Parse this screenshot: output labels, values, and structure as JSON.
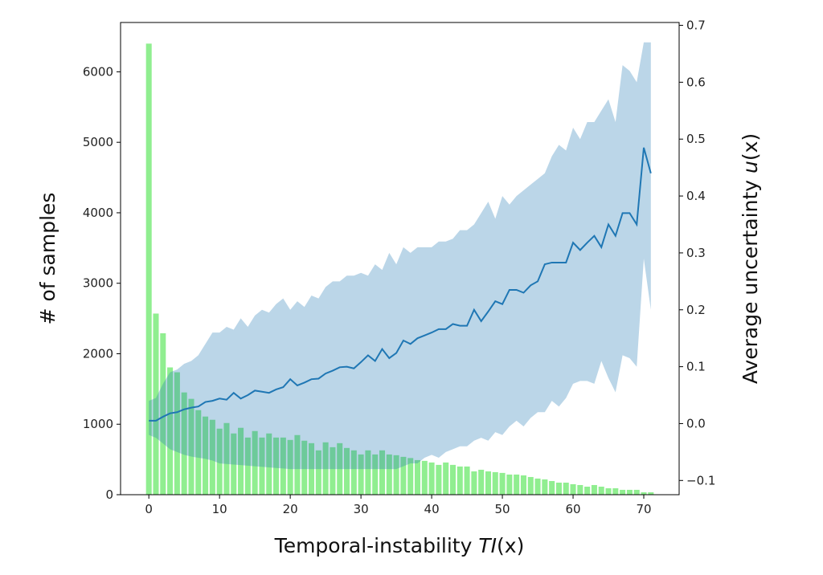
{
  "chart_data": {
    "type": "bar+line",
    "xlabel": "Temporal-instability TI(x)",
    "xlabel_parts": {
      "pre": "Temporal-instability ",
      "var": "TI",
      "post": "(x)"
    },
    "ylabel": "# of samples",
    "y2label": "Average uncertainty u(x)",
    "y2label_parts": {
      "pre": "Average uncertainty ",
      "var": "u",
      "post": "(x)"
    },
    "xlim": [
      -4,
      75
    ],
    "ylim": [
      0,
      6700
    ],
    "y2lim": [
      -0.125,
      0.705
    ],
    "xticks": [
      0,
      10,
      20,
      30,
      40,
      50,
      60,
      70
    ],
    "yticks": [
      0,
      1000,
      2000,
      3000,
      4000,
      5000,
      6000
    ],
    "y2ticks": [
      -0.1,
      0.0,
      0.1,
      0.2,
      0.3,
      0.4,
      0.5,
      0.6,
      0.7
    ],
    "y2ticklabels": [
      "−0.1",
      "0.0",
      "0.1",
      "0.2",
      "0.3",
      "0.4",
      "0.5",
      "0.6",
      "0.7"
    ],
    "colors": {
      "bars": "#90ee90",
      "line": "#1f77b4",
      "band": "#1f77b4"
    },
    "bars": [
      6400,
      2570,
      2290,
      1806,
      1737,
      1451,
      1360,
      1200,
      1109,
      1063,
      937,
      1017,
      869,
      949,
      811,
      903,
      811,
      869,
      811,
      811,
      777,
      846,
      766,
      731,
      629,
      743,
      674,
      731,
      663,
      629,
      571,
      629,
      571,
      629,
      571,
      560,
      537,
      520,
      491,
      480,
      457,
      423,
      457,
      423,
      400,
      400,
      331,
      354,
      331,
      320,
      309,
      286,
      286,
      274,
      251,
      229,
      217,
      194,
      171,
      171,
      149,
      137,
      114,
      137,
      114,
      91,
      91,
      69,
      69,
      69,
      34,
      34
    ],
    "mean": [
      0.005,
      0.005,
      0.012,
      0.018,
      0.02,
      0.025,
      0.028,
      0.03,
      0.038,
      0.04,
      0.044,
      0.042,
      0.054,
      0.044,
      0.05,
      0.058,
      0.056,
      0.054,
      0.06,
      0.064,
      0.078,
      0.067,
      0.072,
      0.078,
      0.079,
      0.088,
      0.093,
      0.099,
      0.1,
      0.097,
      0.108,
      0.12,
      0.11,
      0.131,
      0.115,
      0.124,
      0.146,
      0.14,
      0.15,
      0.155,
      0.16,
      0.166,
      0.166,
      0.175,
      0.172,
      0.172,
      0.2,
      0.18,
      0.197,
      0.215,
      0.21,
      0.235,
      0.235,
      0.23,
      0.243,
      0.25,
      0.28,
      0.283,
      0.283,
      0.283,
      0.318,
      0.305,
      0.318,
      0.33,
      0.31,
      0.35,
      0.33,
      0.37,
      0.37,
      0.35,
      0.485,
      0.44
    ],
    "lower": [
      -0.02,
      -0.025,
      -0.035,
      -0.045,
      -0.05,
      -0.055,
      -0.058,
      -0.06,
      -0.062,
      -0.065,
      -0.07,
      -0.071,
      -0.072,
      -0.073,
      -0.074,
      -0.075,
      -0.076,
      -0.077,
      -0.078,
      -0.079,
      -0.08,
      -0.08,
      -0.08,
      -0.08,
      -0.08,
      -0.08,
      -0.08,
      -0.08,
      -0.08,
      -0.08,
      -0.08,
      -0.08,
      -0.08,
      -0.08,
      -0.08,
      -0.08,
      -0.075,
      -0.07,
      -0.07,
      -0.06,
      -0.055,
      -0.06,
      -0.05,
      -0.045,
      -0.04,
      -0.04,
      -0.03,
      -0.025,
      -0.03,
      -0.015,
      -0.02,
      -0.005,
      0.005,
      -0.005,
      0.01,
      0.02,
      0.02,
      0.04,
      0.03,
      0.045,
      0.07,
      0.075,
      0.075,
      0.07,
      0.11,
      0.08,
      0.055,
      0.12,
      0.115,
      0.1,
      0.29,
      0.2
    ],
    "upper": [
      0.04,
      0.045,
      0.07,
      0.09,
      0.095,
      0.105,
      0.11,
      0.12,
      0.14,
      0.16,
      0.16,
      0.17,
      0.165,
      0.185,
      0.17,
      0.19,
      0.2,
      0.195,
      0.21,
      0.22,
      0.2,
      0.215,
      0.205,
      0.225,
      0.22,
      0.24,
      0.25,
      0.25,
      0.26,
      0.26,
      0.265,
      0.26,
      0.28,
      0.27,
      0.3,
      0.28,
      0.31,
      0.3,
      0.31,
      0.31,
      0.31,
      0.32,
      0.32,
      0.325,
      0.34,
      0.34,
      0.35,
      0.37,
      0.39,
      0.36,
      0.4,
      0.385,
      0.4,
      0.41,
      0.42,
      0.43,
      0.44,
      0.47,
      0.49,
      0.48,
      0.52,
      0.5,
      0.53,
      0.53,
      0.55,
      0.57,
      0.53,
      0.63,
      0.62,
      0.6,
      0.67,
      0.67
    ]
  }
}
